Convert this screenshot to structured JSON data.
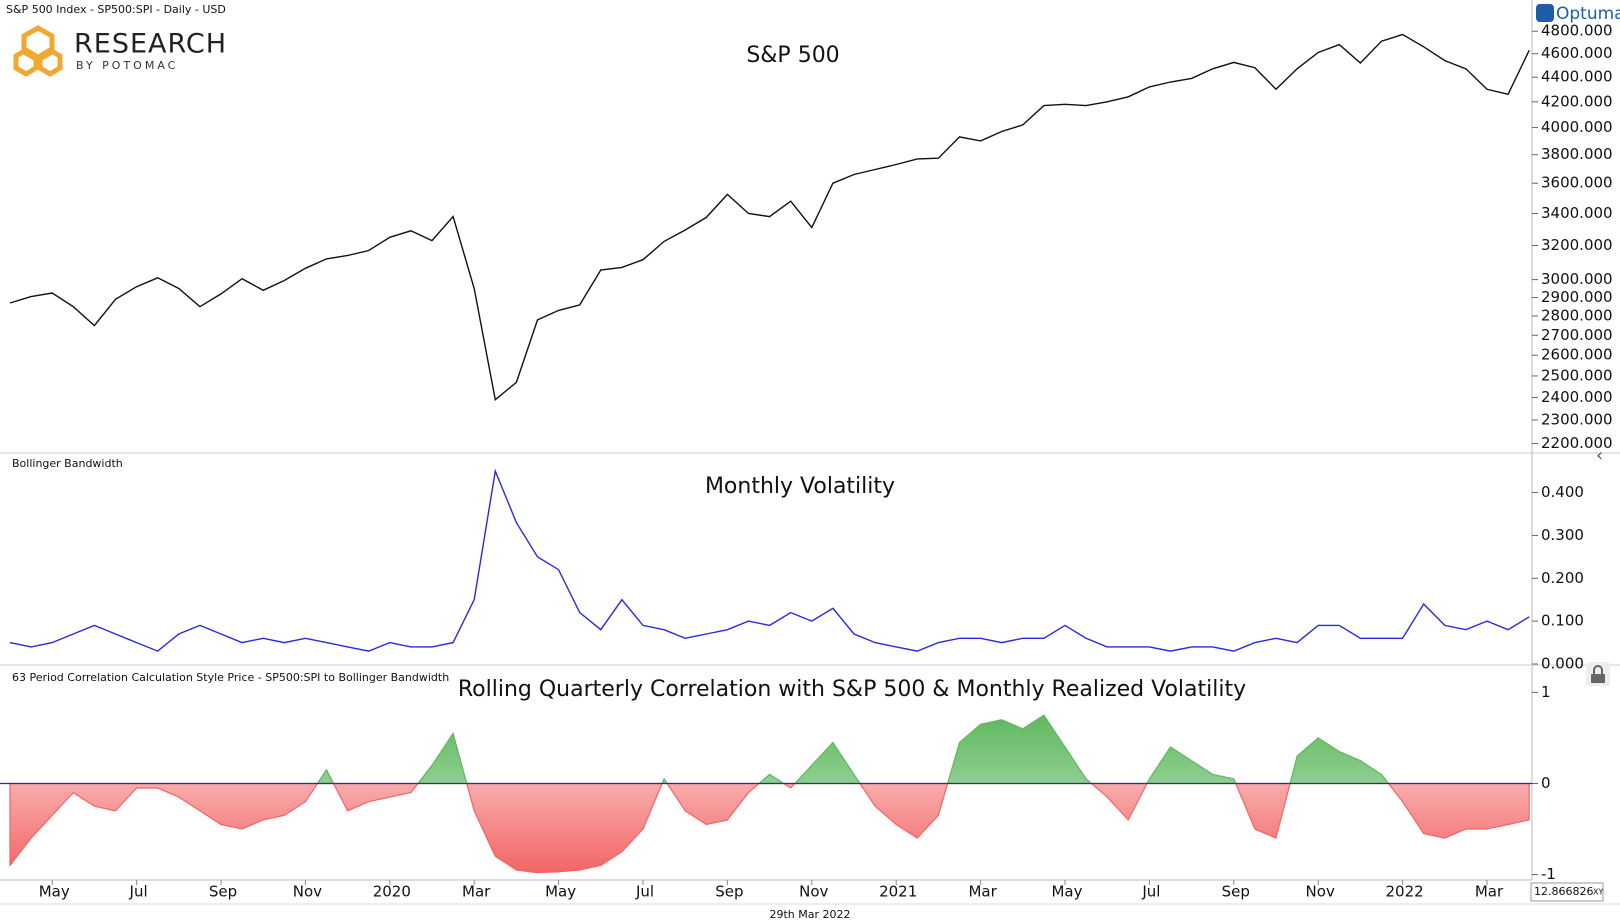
{
  "header": {
    "instrument": "S&P 500 Index  - SP500:SPI - Daily - USD",
    "brand": "Optuma",
    "logo_title": "RESEARCH",
    "logo_subtitle": "BY POTOMAC",
    "date": "29th Mar 2022",
    "cursor_value": "12.866826",
    "cursor_mode": "XY"
  },
  "chart_data": [
    {
      "type": "line",
      "title": "S&P 500",
      "color": "#111111",
      "log_scale": true,
      "ylim": [
        2165,
        4820
      ],
      "yticks": [
        {
          "value": 2200,
          "label": "2200.000"
        },
        {
          "value": 2300,
          "label": "2300.000"
        },
        {
          "value": 2400,
          "label": "2400.000"
        },
        {
          "value": 2500,
          "label": "2500.000"
        },
        {
          "value": 2600,
          "label": "2600.000"
        },
        {
          "value": 2700,
          "label": "2700.000"
        },
        {
          "value": 2800,
          "label": "2800.000"
        },
        {
          "value": 2900,
          "label": "2900.000"
        },
        {
          "value": 3000,
          "label": "3000.000"
        },
        {
          "value": 3200,
          "label": "3200.000"
        },
        {
          "value": 3400,
          "label": "3400.000"
        },
        {
          "value": 3600,
          "label": "3600.000"
        },
        {
          "value": 3800,
          "label": "3800.000"
        },
        {
          "value": 4000,
          "label": "4000.000"
        },
        {
          "value": 4200,
          "label": "4200.000"
        },
        {
          "value": 4400,
          "label": "4400.000"
        },
        {
          "value": 4600,
          "label": "4600.000"
        },
        {
          "value": 4800,
          "label": "4800.000"
        }
      ],
      "values": [
        2870,
        2905,
        2925,
        2850,
        2750,
        2890,
        2960,
        3010,
        2950,
        2850,
        2920,
        3005,
        2940,
        2995,
        3065,
        3120,
        3140,
        3170,
        3250,
        3290,
        3230,
        3380,
        2950,
        2390,
        2470,
        2780,
        2830,
        2860,
        3055,
        3070,
        3115,
        3225,
        3295,
        3375,
        3525,
        3400,
        3380,
        3480,
        3310,
        3600,
        3660,
        3695,
        3730,
        3770,
        3775,
        3930,
        3900,
        3970,
        4020,
        4170,
        4180,
        4170,
        4200,
        4240,
        4320,
        4360,
        4390,
        4470,
        4525,
        4480,
        4300,
        4470,
        4610,
        4680,
        4520,
        4710,
        4770,
        4660,
        4540,
        4470,
        4300,
        4260,
        4630
      ]
    },
    {
      "type": "line",
      "label": "Bollinger Bandwidth",
      "title": "Monthly Volatility",
      "color": "#2a2ae0",
      "log_scale": false,
      "ylim": [
        0,
        0.49
      ],
      "yticks": [
        {
          "value": 0,
          "label": "0.000"
        },
        {
          "value": 0.1,
          "label": "0.100"
        },
        {
          "value": 0.2,
          "label": "0.200"
        },
        {
          "value": 0.3,
          "label": "0.300"
        },
        {
          "value": 0.4,
          "label": "0.400"
        }
      ],
      "values": [
        0.05,
        0.04,
        0.05,
        0.07,
        0.09,
        0.07,
        0.05,
        0.03,
        0.07,
        0.09,
        0.07,
        0.05,
        0.06,
        0.05,
        0.06,
        0.05,
        0.04,
        0.03,
        0.05,
        0.04,
        0.04,
        0.05,
        0.15,
        0.45,
        0.33,
        0.25,
        0.22,
        0.12,
        0.08,
        0.15,
        0.09,
        0.08,
        0.06,
        0.07,
        0.08,
        0.1,
        0.09,
        0.12,
        0.1,
        0.13,
        0.07,
        0.05,
        0.04,
        0.03,
        0.05,
        0.06,
        0.06,
        0.05,
        0.06,
        0.06,
        0.09,
        0.06,
        0.04,
        0.04,
        0.04,
        0.03,
        0.04,
        0.04,
        0.03,
        0.05,
        0.06,
        0.05,
        0.09,
        0.09,
        0.06,
        0.06,
        0.06,
        0.14,
        0.09,
        0.08,
        0.1,
        0.08,
        0.11
      ]
    },
    {
      "type": "area",
      "label": "63 Period Correlation Calculation Style Price - SP500:SPI to Bollinger Bandwidth",
      "title": "Rolling Quarterly Correlation with S&P 500 & Monthly Realized Volatility",
      "positive_color": "#5fb85f",
      "negative_color": "#f26565",
      "zero_color": "#2a2ab0",
      "log_scale": false,
      "ylim": [
        -1.06,
        1.29
      ],
      "yticks": [
        1,
        0,
        -1
      ],
      "categories": [
        null,
        null,
        "May",
        null,
        null,
        null,
        "Jul",
        null,
        null,
        null,
        "Sep",
        null,
        null,
        null,
        "Nov",
        null,
        null,
        null,
        "2020",
        null,
        null,
        null,
        "Mar",
        null,
        null,
        null,
        "May",
        null,
        null,
        null,
        "Jul",
        null,
        null,
        null,
        "Sep",
        null,
        null,
        null,
        "Nov",
        null,
        null,
        null,
        "2021",
        null,
        null,
        null,
        "Mar",
        null,
        null,
        null,
        "May",
        null,
        null,
        null,
        "Jul",
        null,
        null,
        null,
        "Sep",
        null,
        null,
        null,
        "Nov",
        null,
        null,
        null,
        "2022",
        null,
        null,
        null,
        "Mar",
        null,
        null
      ],
      "values": [
        -0.9,
        -0.6,
        -0.35,
        -0.1,
        -0.25,
        -0.3,
        -0.05,
        -0.05,
        -0.15,
        -0.3,
        -0.45,
        -0.5,
        -0.4,
        -0.35,
        -0.2,
        0.15,
        -0.3,
        -0.2,
        -0.15,
        -0.1,
        0.2,
        0.55,
        -0.3,
        -0.8,
        -0.95,
        -0.98,
        -0.97,
        -0.95,
        -0.9,
        -0.75,
        -0.5,
        0.05,
        -0.3,
        -0.45,
        -0.4,
        -0.1,
        0.1,
        -0.05,
        0.2,
        0.45,
        0.1,
        -0.25,
        -0.45,
        -0.6,
        -0.35,
        0.45,
        0.65,
        0.7,
        0.6,
        0.75,
        0.4,
        0.05,
        -0.15,
        -0.4,
        0.05,
        0.4,
        0.25,
        0.1,
        0.05,
        -0.5,
        -0.6,
        0.3,
        0.5,
        0.35,
        0.25,
        0.1,
        -0.2,
        -0.55,
        -0.6,
        -0.5,
        -0.5,
        -0.45,
        -0.4
      ]
    }
  ]
}
